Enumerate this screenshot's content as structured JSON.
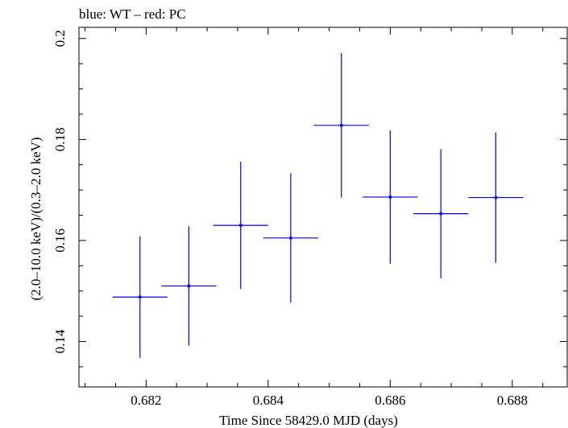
{
  "chart_data": {
    "type": "scatter",
    "title": "blue: WT – red: PC",
    "xlabel": "Time Since 58429.0 MJD (days)",
    "ylabel": "(2.0–10.0 keV)/(0.3–2.0 keV)",
    "xlim": [
      0.6809,
      0.6889
    ],
    "ylim": [
      0.131,
      0.2022
    ],
    "x_ticks": [
      "0.682",
      "0.684",
      "0.686",
      "0.688"
    ],
    "y_ticks": [
      "0.14",
      "0.16",
      "0.18",
      "0.2"
    ],
    "series": [
      {
        "name": "WT",
        "color": "#0000ff",
        "points": [
          {
            "x": 0.6819,
            "xerr": 0.00045,
            "y": 0.1488,
            "yerr": 0.012
          },
          {
            "x": 0.6827,
            "xerr": 0.00045,
            "y": 0.151,
            "yerr": 0.0118
          },
          {
            "x": 0.68355,
            "xerr": 0.00045,
            "y": 0.163,
            "yerr": 0.0126
          },
          {
            "x": 0.68437,
            "xerr": 0.00045,
            "y": 0.1605,
            "yerr": 0.0128
          },
          {
            "x": 0.6852,
            "xerr": 0.00045,
            "y": 0.1828,
            "yerr": 0.0143
          },
          {
            "x": 0.686,
            "xerr": 0.00045,
            "y": 0.1686,
            "yerr": 0.0132
          },
          {
            "x": 0.68683,
            "xerr": 0.00045,
            "y": 0.1653,
            "yerr": 0.0128
          },
          {
            "x": 0.68773,
            "xerr": 0.00045,
            "y": 0.1685,
            "yerr": 0.0129
          }
        ]
      }
    ]
  }
}
